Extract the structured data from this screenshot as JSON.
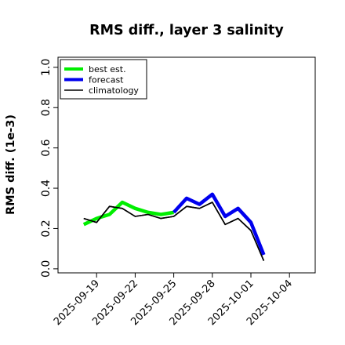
{
  "chart_data": {
    "type": "line",
    "title": "RMS diff., layer 3 salinity",
    "xlabel": "",
    "ylabel": "RMS diff. (1e-3)",
    "ylim": [
      -0.02,
      1.05
    ],
    "yticks": [
      "0.0",
      "0.2",
      "0.4",
      "0.6",
      "0.8",
      "1.0"
    ],
    "xticks": [
      {
        "label": "2025-09-19",
        "color": "#000000"
      },
      {
        "label": "2025-09-22",
        "color": "#000000"
      },
      {
        "label": "2025-09-25",
        "color": "#1f8a1f"
      },
      {
        "label": "2025-09-28",
        "color": "#000000"
      },
      {
        "label": "2025-10-01",
        "color": "#000000"
      },
      {
        "label": "2025-10-04",
        "color": "#000000"
      }
    ],
    "xrange": [
      "2025-09-16",
      "2025-10-06"
    ],
    "grid": false,
    "legend_position": "top-left",
    "series": [
      {
        "name": "best est.",
        "color": "#00ee00",
        "style": "thick",
        "x": [
          "2025-09-18",
          "2025-09-19",
          "2025-09-20",
          "2025-09-21",
          "2025-09-22",
          "2025-09-23",
          "2025-09-24",
          "2025-09-25"
        ],
        "y": [
          0.22,
          0.25,
          0.27,
          0.33,
          0.3,
          0.28,
          0.27,
          0.28
        ]
      },
      {
        "name": "forecast",
        "color": "#0000ee",
        "style": "thick",
        "x": [
          "2025-09-25",
          "2025-09-26",
          "2025-09-27",
          "2025-09-28",
          "2025-09-29",
          "2025-09-30",
          "2025-10-01",
          "2025-10-02"
        ],
        "y": [
          0.28,
          0.35,
          0.32,
          0.37,
          0.26,
          0.3,
          0.23,
          0.07
        ]
      },
      {
        "name": "climatology",
        "color": "#000000",
        "style": "thin",
        "x": [
          "2025-09-18",
          "2025-09-19",
          "2025-09-20",
          "2025-09-21",
          "2025-09-22",
          "2025-09-23",
          "2025-09-24",
          "2025-09-25",
          "2025-09-26",
          "2025-09-27",
          "2025-09-28",
          "2025-09-29",
          "2025-09-30",
          "2025-10-01",
          "2025-10-02"
        ],
        "y": [
          0.25,
          0.23,
          0.31,
          0.3,
          0.26,
          0.27,
          0.25,
          0.26,
          0.31,
          0.3,
          0.33,
          0.22,
          0.25,
          0.19,
          0.04
        ]
      }
    ]
  }
}
